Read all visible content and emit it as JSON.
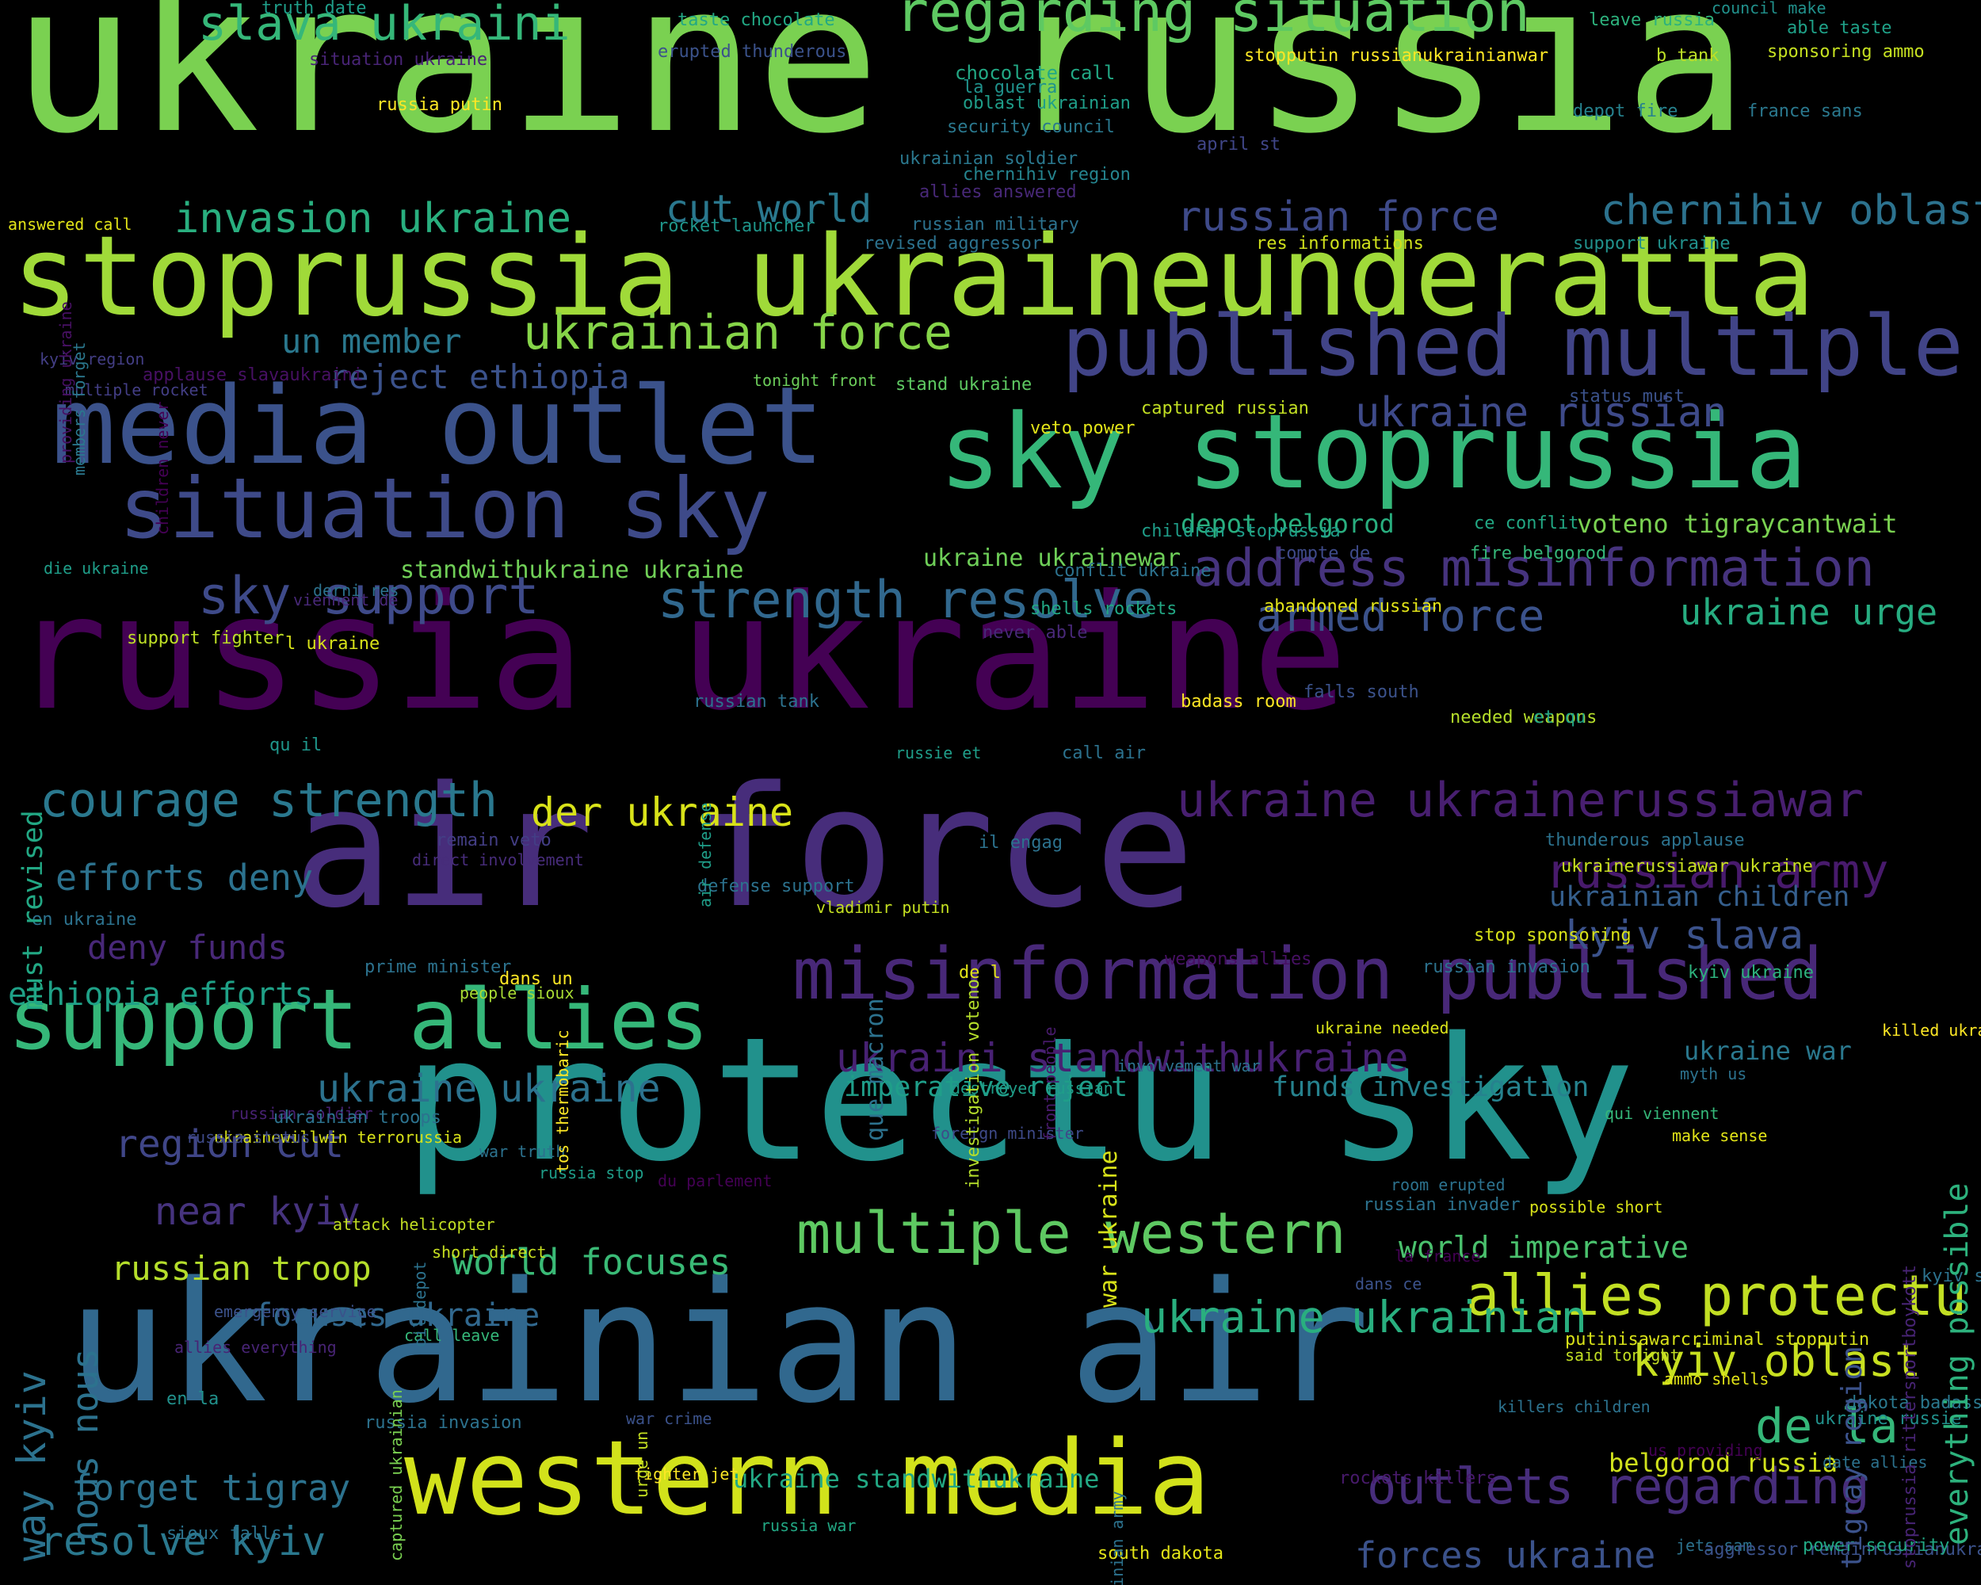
{
  "background": "#000000",
  "palette": [
    "#440154",
    "#472d7b",
    "#3b528b",
    "#2c728e",
    "#21918c",
    "#28ae80",
    "#5ec962",
    "#addc30",
    "#fde725"
  ],
  "words": [
    {
      "text": "ukraine russia",
      "color": "#7ad151"
    },
    {
      "text": "stoprussia ukraineunderatta",
      "color": "#a0da39"
    },
    {
      "text": "russia ukraine",
      "color": "#440154"
    },
    {
      "text": "air force",
      "color": "#472d7b"
    },
    {
      "text": "protectu sky",
      "color": "#21918c"
    },
    {
      "text": "ukrainian air",
      "color": "#31688e"
    },
    {
      "text": "media outlet",
      "color": "#3b528b"
    },
    {
      "text": "sky stoprussia",
      "color": "#35b779"
    },
    {
      "text": "situation sky",
      "color": "#3e4a89"
    },
    {
      "text": "published multiple",
      "color": "#414487"
    },
    {
      "text": "western media",
      "color": "#d2e21b"
    },
    {
      "text": "support allies",
      "color": "#35b779"
    },
    {
      "text": "misinformation published",
      "color": "#482878"
    },
    {
      "text": "regarding situation",
      "color": "#5ec962"
    },
    {
      "text": "slava ukraini",
      "color": "#35b779"
    },
    {
      "text": "address misinformation",
      "color": "#46337e"
    },
    {
      "text": "sky support",
      "color": "#3e4a89"
    },
    {
      "text": "strength resolve",
      "color": "#31688e"
    },
    {
      "text": "courage strength",
      "color": "#2a788e"
    },
    {
      "text": "multiple western",
      "color": "#5ec962"
    },
    {
      "text": "allies protectu",
      "color": "#c2df23"
    },
    {
      "text": "ukraine ukrainerussiawar",
      "color": "#481f70"
    },
    {
      "text": "outlets regarding",
      "color": "#472d7b"
    },
    {
      "text": "russian army",
      "color": "#481a6c"
    },
    {
      "text": "ukrainian force",
      "color": "#86d549"
    },
    {
      "text": "invasion ukraine",
      "color": "#29af7f"
    },
    {
      "text": "russian force",
      "color": "#3e4a89"
    },
    {
      "text": "chernihiv oblast",
      "color": "#2c728e"
    },
    {
      "text": "cut world",
      "color": "#2a788e"
    },
    {
      "text": "un member",
      "color": "#2a788e"
    },
    {
      "text": "reject ethiopia",
      "color": "#3b528b"
    },
    {
      "text": "ukraine russian",
      "color": "#3e4a89"
    },
    {
      "text": "armed force",
      "color": "#3b528b"
    },
    {
      "text": "ukraine urge",
      "color": "#27ad81"
    },
    {
      "text": "kyiv slava",
      "color": "#3b528b"
    },
    {
      "text": "ukrainian children",
      "color": "#355f8d"
    },
    {
      "text": "ukraini standwithukraine",
      "color": "#482173"
    },
    {
      "text": "ukraine ukraine",
      "color": "#2c728e"
    },
    {
      "text": "efforts deny",
      "color": "#2c728e"
    },
    {
      "text": "deny funds",
      "color": "#482878"
    },
    {
      "text": "ethiopia efforts",
      "color": "#1fa187"
    },
    {
      "text": "der ukraine",
      "color": "#d8e219"
    },
    {
      "text": "region cut",
      "color": "#404688"
    },
    {
      "text": "near kyiv",
      "color": "#46337e"
    },
    {
      "text": "russian troop",
      "color": "#b5de2b"
    },
    {
      "text": "world focuses",
      "color": "#3aba76"
    },
    {
      "text": "focuses ukraine",
      "color": "#31688e"
    },
    {
      "text": "ukraine ukrainian",
      "color": "#29af7f"
    },
    {
      "text": "world imperative",
      "color": "#4ac16d"
    },
    {
      "text": "kyiv oblast",
      "color": "#c8e020"
    },
    {
      "text": "de la",
      "color": "#35b779"
    },
    {
      "text": "belgorod russia",
      "color": "#d0e11c"
    },
    {
      "text": "forces ukraine",
      "color": "#3b528b"
    },
    {
      "text": "forget tigray",
      "color": "#2c728e"
    },
    {
      "text": "resolve kyiv",
      "color": "#2a788e"
    },
    {
      "text": "ukraine standwithukraine",
      "color": "#22a884"
    },
    {
      "text": "imperative reject",
      "color": "#1f9e89"
    },
    {
      "text": "funds investigation",
      "color": "#26828e"
    },
    {
      "text": "ukraine war",
      "color": "#2a788e"
    },
    {
      "text": "voteno tigraycantwait",
      "color": "#7ad151"
    },
    {
      "text": "depot belgorod",
      "color": "#29af7f"
    },
    {
      "text": "standwithukraine ukraine",
      "color": "#70cf57"
    },
    {
      "text": "ukraine ukrainewar",
      "color": "#6ece58"
    },
    {
      "text": "truth date",
      "color": "#1f9e89"
    },
    {
      "text": "taste chocolate",
      "color": "#22a884"
    },
    {
      "text": "leave russia",
      "color": "#2db27d"
    },
    {
      "text": "council make",
      "color": "#21918c"
    },
    {
      "text": "able taste",
      "color": "#1fa188"
    },
    {
      "text": "erupted thunderous",
      "color": "#3b528b"
    },
    {
      "text": "situation ukraine",
      "color": "#482475"
    },
    {
      "text": "stopputin russianukrainianwar",
      "color": "#fde725"
    },
    {
      "text": "b tank",
      "color": "#bddf26"
    },
    {
      "text": "sponsoring ammo",
      "color": "#c5e021"
    },
    {
      "text": "chocolate call",
      "color": "#22a884"
    },
    {
      "text": "la guerra",
      "color": "#20928c"
    },
    {
      "text": "oblast ukrainian",
      "color": "#1f9e89"
    },
    {
      "text": "security council",
      "color": "#2a788e"
    },
    {
      "text": "russia putin",
      "color": "#fde725"
    },
    {
      "text": "depot fire",
      "color": "#26828e"
    },
    {
      "text": "france sans",
      "color": "#2a788e"
    },
    {
      "text": "april st",
      "color": "#404688"
    },
    {
      "text": "ukrainian soldier",
      "color": "#2a788e"
    },
    {
      "text": "chernihiv region",
      "color": "#25848e"
    },
    {
      "text": "allies answered",
      "color": "#482878"
    },
    {
      "text": "answered call",
      "color": "#e2e418"
    },
    {
      "text": "rocket launcher",
      "color": "#1f968b"
    },
    {
      "text": "russian military",
      "color": "#2c728e"
    },
    {
      "text": "revised aggressor",
      "color": "#2c728e"
    },
    {
      "text": "res informations",
      "color": "#d0e11c"
    },
    {
      "text": "support ukraine",
      "color": "#21918c"
    },
    {
      "text": "kyiv region",
      "color": "#433e85"
    },
    {
      "text": "tonight front",
      "color": "#6ccd5a"
    },
    {
      "text": "applause slavaukraini",
      "color": "#471063"
    },
    {
      "text": "multiple rocket",
      "color": "#433e85"
    },
    {
      "text": "stand ukraine",
      "color": "#5ec962"
    },
    {
      "text": "captured russian",
      "color": "#c2df23"
    },
    {
      "text": "status must",
      "color": "#3b528b"
    },
    {
      "text": "veto power",
      "color": "#e2e418"
    },
    {
      "text": "children stoprussia",
      "color": "#1f9e89"
    },
    {
      "text": "ce conflit",
      "color": "#22a884"
    },
    {
      "text": "compte de",
      "color": "#3e4a89"
    },
    {
      "text": "fire belgorod",
      "color": "#35b779"
    },
    {
      "text": "conflit ukraine",
      "color": "#2c728e"
    },
    {
      "text": "die ukraine",
      "color": "#1f9e89"
    },
    {
      "text": "derni res",
      "color": "#2c728e"
    },
    {
      "text": "shells rockets",
      "color": "#22a884"
    },
    {
      "text": "abandoned russian",
      "color": "#e2e418"
    },
    {
      "text": "viennent de",
      "color": "#482878"
    },
    {
      "text": "never able",
      "color": "#482878"
    },
    {
      "text": "support fighter",
      "color": "#bddf26"
    },
    {
      "text": "l ukraine",
      "color": "#d8e219"
    },
    {
      "text": "russian tank",
      "color": "#2c728e"
    },
    {
      "text": "badass room",
      "color": "#fde725"
    },
    {
      "text": "falls south",
      "color": "#3b528b"
    },
    {
      "text": "needed weapons",
      "color": "#b5de2b"
    },
    {
      "text": "et qu",
      "color": "#20a386"
    },
    {
      "text": "russie et",
      "color": "#1f9e89"
    },
    {
      "text": "call air",
      "color": "#2c728e"
    },
    {
      "text": "qu il",
      "color": "#1f968b"
    },
    {
      "text": "remain veto",
      "color": "#433e85"
    },
    {
      "text": "thunderous applause",
      "color": "#2c728e"
    },
    {
      "text": "direct involvement",
      "color": "#472c7a"
    },
    {
      "text": "il engag",
      "color": "#2c728e"
    },
    {
      "text": "ukrainerussiawar ukraine",
      "color": "#c8e020"
    },
    {
      "text": "defense support",
      "color": "#2c728e"
    },
    {
      "text": "vladimir putin",
      "color": "#c5e021"
    },
    {
      "text": "en ukraine",
      "color": "#2c728e"
    },
    {
      "text": "stop sponsoring",
      "color": "#d8e219"
    },
    {
      "text": "weapons allies",
      "color": "#471063"
    },
    {
      "text": "russian invasion",
      "color": "#2c728e"
    },
    {
      "text": "de l",
      "color": "#e2e418"
    },
    {
      "text": "kyiv ukraine",
      "color": "#2db27d"
    },
    {
      "text": "prime minister",
      "color": "#2c728e"
    },
    {
      "text": "dans un",
      "color": "#fde725"
    },
    {
      "text": "people sioux",
      "color": "#a8db34"
    },
    {
      "text": "ukraine needed",
      "color": "#d8e219"
    },
    {
      "text": "involvement war",
      "color": "#2c728e"
    },
    {
      "text": "myth us",
      "color": "#2c728e"
    },
    {
      "text": "war truth",
      "color": "#2c728e"
    },
    {
      "text": "ukrainewillwin terrorussia",
      "color": "#d8e219"
    },
    {
      "text": "russia stop",
      "color": "#1f9e89"
    },
    {
      "text": "killed ukrainian",
      "color": "#fde725"
    },
    {
      "text": "destroyed russian",
      "color": "#1f9e89"
    },
    {
      "text": "qui viennent",
      "color": "#35b779"
    },
    {
      "text": "foreign minister",
      "color": "#3e4a89"
    },
    {
      "text": "make sense",
      "color": "#e2e418"
    },
    {
      "text": "possible short",
      "color": "#d8e219"
    },
    {
      "text": "du parlement",
      "color": "#440154"
    },
    {
      "text": "russia status",
      "color": "#3e4a89"
    },
    {
      "text": "short direct",
      "color": "#c8e020"
    },
    {
      "text": "room erupted",
      "color": "#2c728e"
    },
    {
      "text": "attack helicopter",
      "color": "#c2df23"
    },
    {
      "text": "la france",
      "color": "#440154"
    },
    {
      "text": "dans ce",
      "color": "#3b528b"
    },
    {
      "text": "russian soldier",
      "color": "#482173"
    },
    {
      "text": "ukrainian troops",
      "color": "#2c728e"
    },
    {
      "text": "russian invader",
      "color": "#2c728e"
    },
    {
      "text": "putinisawarcriminal stopputin",
      "color": "#d8e219"
    },
    {
      "text": "dakota badass",
      "color": "#2a788e"
    },
    {
      "text": "war crime",
      "color": "#3b528b"
    },
    {
      "text": "killers children",
      "color": "#2c728e"
    },
    {
      "text": "allies everything",
      "color": "#482475"
    },
    {
      "text": "fighter jet",
      "color": "#fde725"
    },
    {
      "text": "said tonight",
      "color": "#c2df23"
    },
    {
      "text": "emergency service",
      "color": "#3b528b"
    },
    {
      "text": "ammo shells",
      "color": "#e2e418"
    },
    {
      "text": "ukraine russie",
      "color": "#21918c"
    },
    {
      "text": "en la",
      "color": "#21918c"
    },
    {
      "text": "date allies",
      "color": "#2c728e"
    },
    {
      "text": "rockets killers",
      "color": "#481a6c"
    },
    {
      "text": "us providing",
      "color": "#440154"
    },
    {
      "text": "russia invasion",
      "color": "#2c728e"
    },
    {
      "text": "jets sam",
      "color": "#2c728e"
    },
    {
      "text": "sioux falls",
      "color": "#2c728e"
    },
    {
      "text": "aggressor remainrussianukrainianwar russiagohome",
      "color": "#3b528b"
    },
    {
      "text": "russia war",
      "color": "#22a884"
    },
    {
      "text": "kyiv standwithukraine",
      "color": "#2c728e"
    },
    {
      "text": "call leave",
      "color": "#35b779"
    },
    {
      "text": "south dakota",
      "color": "#e2e418"
    },
    {
      "text": "power security",
      "color": "#22a884"
    },
    {
      "text": "providing ukraine",
      "color": "#471063"
    },
    {
      "text": "members forget",
      "color": "#2a788e"
    },
    {
      "text": "children never",
      "color": "#440154"
    },
    {
      "text": "must revised",
      "color": "#22a884"
    },
    {
      "text": "air defense",
      "color": "#1f9e89"
    },
    {
      "text": "tos thermobaric",
      "color": "#fde725"
    },
    {
      "text": "que macron",
      "color": "#2c728e"
    },
    {
      "text": "investigation voteno",
      "color": "#b5de2b"
    },
    {
      "text": "front people",
      "color": "#481a6c"
    },
    {
      "text": "war ukraine",
      "color": "#d8e219"
    },
    {
      "text": "oil depot",
      "color": "#2c728e"
    },
    {
      "text": "way kyiv",
      "color": "#2c728e"
    },
    {
      "text": "nous nous",
      "color": "#2c728e"
    },
    {
      "text": "captured ukrainian",
      "color": "#7ad151"
    },
    {
      "text": "urge un",
      "color": "#c5e021"
    },
    {
      "text": "ukrainian army",
      "color": "#2c728e"
    },
    {
      "text": "tigray region",
      "color": "#3b528b"
    },
    {
      "text": "stoprussia rittersportboykott",
      "color": "#482475"
    },
    {
      "text": "everything possible",
      "color": "#2db27d"
    }
  ]
}
